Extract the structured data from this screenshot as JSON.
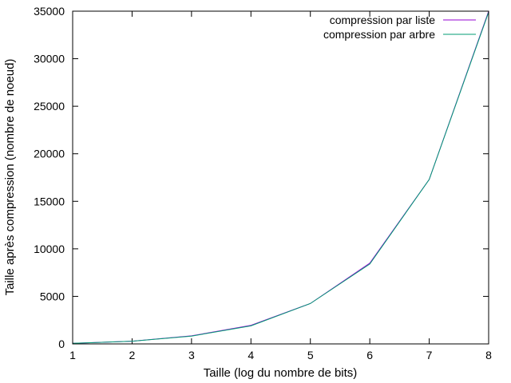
{
  "chart_data": {
    "type": "line",
    "title": "",
    "xlabel": "Taille (log du nombre de bits)",
    "ylabel": "Taille après compression (nombre de noeud)",
    "xlim": [
      1,
      8
    ],
    "ylim": [
      0,
      35000
    ],
    "xticks": [
      "1",
      "2",
      "3",
      "4",
      "5",
      "6",
      "7",
      "8"
    ],
    "yticks": [
      "0",
      "5000",
      "10000",
      "15000",
      "20000",
      "25000",
      "30000",
      "35000"
    ],
    "grid": false,
    "legend_position": "top-right",
    "x": [
      1,
      2,
      3,
      4,
      5,
      6,
      7,
      8
    ],
    "series": [
      {
        "name": "compression par liste",
        "color": "#9400d3",
        "values": [
          60,
          280,
          850,
          1950,
          4250,
          8500,
          17300,
          35000
        ]
      },
      {
        "name": "compression par arbre",
        "color": "#009e73",
        "values": [
          60,
          280,
          820,
          1900,
          4250,
          8400,
          17300,
          34900
        ]
      }
    ]
  }
}
